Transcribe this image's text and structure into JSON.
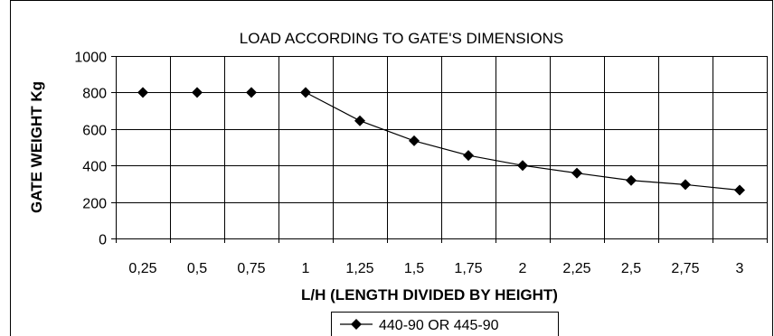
{
  "chart_data": {
    "type": "line",
    "title": "LOAD ACCORDING TO GATE'S DIMENSIONS",
    "xlabel": "L/H (LENGTH DIVIDED BY  HEIGHT)",
    "ylabel": "GATE WEIGHT Kg",
    "categories": [
      "0,25",
      "0,5",
      "0,75",
      "1",
      "1,25",
      "1,5",
      "1,75",
      "2",
      "2,25",
      "2,5",
      "2,75",
      "3"
    ],
    "y_ticks": [
      "0",
      "200",
      "400",
      "600",
      "800",
      "1000"
    ],
    "ylim": [
      0,
      1000
    ],
    "grid": true,
    "legend_position": "bottom",
    "series": [
      {
        "name": "440-90 OR 445-90",
        "values": [
          800,
          800,
          800,
          800,
          645,
          535,
          455,
          400,
          358,
          318,
          295,
          265
        ],
        "connected_from_index": 3,
        "marker": "diamond",
        "color": "#000000"
      }
    ]
  }
}
